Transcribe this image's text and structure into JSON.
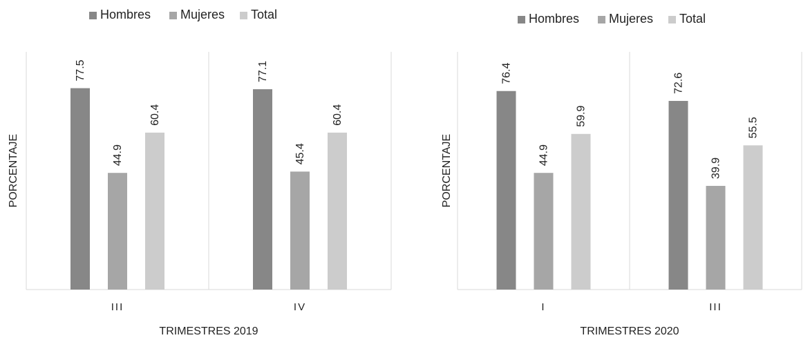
{
  "chart_data": [
    {
      "type": "bar",
      "categories": [
        "III",
        "IV"
      ],
      "series": [
        {
          "name": "Hombres",
          "values": [
            77.5,
            77.1
          ],
          "color": "#878787"
        },
        {
          "name": "Mujeres",
          "values": [
            44.9,
            45.4
          ],
          "color": "#a6a6a6"
        },
        {
          "name": "Total",
          "values": [
            60.4,
            60.4
          ],
          "color": "#cccccc"
        }
      ],
      "xlabel": "TRIMESTRES 2019",
      "ylabel": "PORCENTAJE",
      "ylim": [
        0,
        80
      ],
      "legend": "top",
      "grid": false
    },
    {
      "type": "bar",
      "categories": [
        "I",
        "III"
      ],
      "series": [
        {
          "name": "Hombres",
          "values": [
            76.4,
            72.6
          ],
          "color": "#878787"
        },
        {
          "name": "Mujeres",
          "values": [
            44.9,
            39.9
          ],
          "color": "#a6a6a6"
        },
        {
          "name": "Total",
          "values": [
            59.9,
            55.5
          ],
          "color": "#cccccc"
        }
      ],
      "xlabel": "TRIMESTRES 2020",
      "ylabel": "PORCENTAJE",
      "ylim": [
        0,
        80
      ],
      "legend": "top",
      "grid": false
    }
  ]
}
